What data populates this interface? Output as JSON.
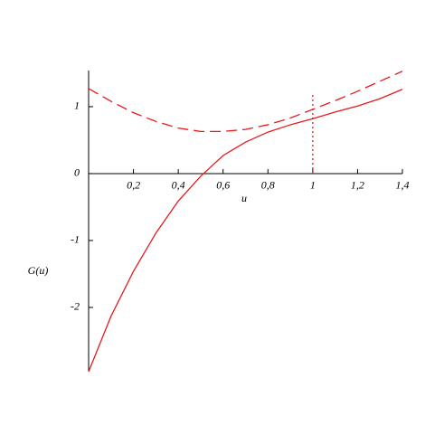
{
  "chart_data": {
    "type": "line",
    "x": [
      0,
      0.1,
      0.2,
      0.3,
      0.4,
      0.5,
      0.6,
      0.7,
      0.8,
      0.9,
      1.0,
      1.1,
      1.2,
      1.3,
      1.4
    ],
    "series": [
      {
        "color": "#e8191c",
        "dash": "solid",
        "values": [
          -2.96,
          -2.13,
          -1.46,
          -0.89,
          -0.41,
          -0.04,
          0.27,
          0.47,
          0.62,
          0.73,
          0.82,
          0.92,
          1.01,
          1.12,
          1.26
        ]
      },
      {
        "color": "#e8191c",
        "dash": "dashed",
        "values": [
          1.27,
          1.08,
          0.91,
          0.78,
          0.68,
          0.63,
          0.63,
          0.66,
          0.73,
          0.83,
          0.96,
          1.09,
          1.23,
          1.38,
          1.53
        ]
      }
    ],
    "vline": {
      "x": 1,
      "y": [
        0,
        1.2
      ],
      "color": "#e8191c",
      "dash": "dotted"
    },
    "xlabel": "u",
    "ylabel": "G(u)",
    "xlim": [
      0,
      1.4
    ],
    "ylim": [
      -2.96,
      1.54
    ],
    "xticks": [
      {
        "value": 0.2,
        "label": "0,2"
      },
      {
        "value": 0.4,
        "label": "0,4"
      },
      {
        "value": 0.6,
        "label": "0,6"
      },
      {
        "value": 0.8,
        "label": "0,8"
      },
      1,
      {
        "value": 1.2,
        "label": "1,2"
      },
      {
        "value": 1.4,
        "label": "1,4"
      }
    ],
    "yticks": [
      -2,
      -1,
      0,
      1
    ],
    "grid": false
  }
}
